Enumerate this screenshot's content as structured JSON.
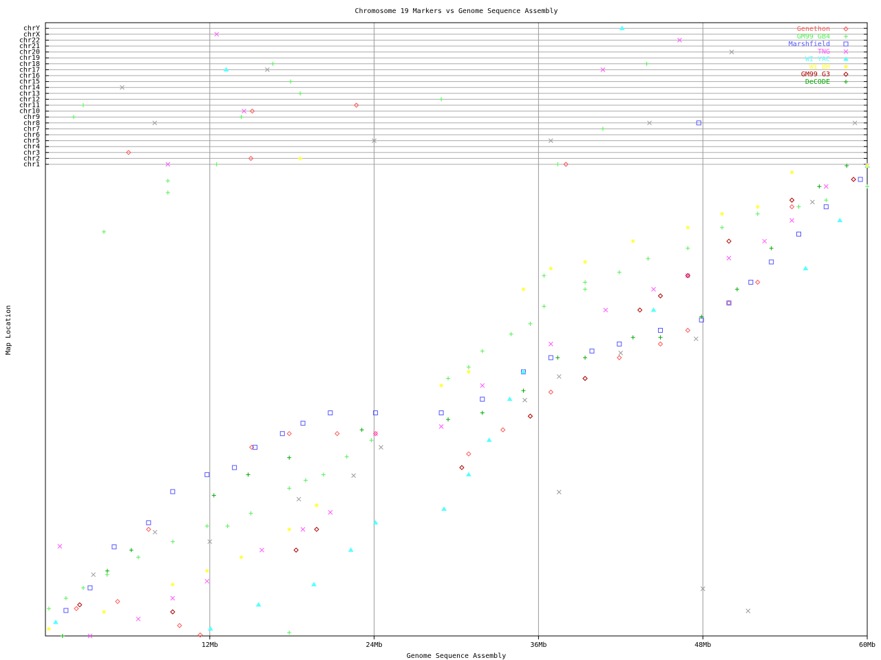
{
  "chart_data": {
    "type": "scatter",
    "title": "Chromosome 19 Markers vs Genome Sequence Assembly",
    "xlabel": "Genome Sequence Assembly",
    "ylabel": "Map Location",
    "xlim": [
      0,
      60
    ],
    "ylim": [
      0,
      100
    ],
    "x_ticks": [
      {
        "value": 12,
        "label": "12Mb"
      },
      {
        "value": 24,
        "label": "24Mb"
      },
      {
        "value": 36,
        "label": "36Mb"
      },
      {
        "value": 48,
        "label": "48Mb"
      },
      {
        "value": 60,
        "label": "60Mb"
      }
    ],
    "chromosome_rows": [
      "chr1",
      "chr2",
      "chr3",
      "chr4",
      "chr5",
      "chr6",
      "chr7",
      "chr8",
      "chr9",
      "chr10",
      "chr11",
      "chr12",
      "chr13",
      "chr14",
      "chr15",
      "chr16",
      "chr17",
      "chr18",
      "chr19",
      "chr20",
      "chr21",
      "chr22",
      "chrX",
      "chrY"
    ],
    "grid": true,
    "legend_position": "top-right",
    "series": [
      {
        "name": "Genethon",
        "marker": "diamond",
        "color": "#ff5555",
        "points": [
          [
            2.26,
            5.8
          ],
          [
            5.27,
            7.3
          ],
          [
            7.53,
            22.6
          ],
          [
            9.79,
            2.2
          ],
          [
            11.3,
            0.2
          ],
          [
            15.06,
            40
          ],
          [
            17.8,
            42.9
          ],
          [
            21.3,
            42.9
          ],
          [
            24.1,
            42.9
          ],
          [
            30.9,
            38.6
          ],
          [
            33.4,
            43.7
          ],
          [
            35.4,
            46.6
          ],
          [
            36.9,
            51.7
          ],
          [
            39.4,
            54.6
          ],
          [
            41.9,
            59
          ],
          [
            44.9,
            61.9
          ],
          [
            46.9,
            64.8
          ],
          [
            49.9,
            70.6
          ],
          [
            52,
            75
          ],
          [
            54.5,
            91
          ],
          [
            59,
            96.8
          ]
        ]
      },
      {
        "name": "GM99 GB4",
        "marker": "plus",
        "color": "#55ee55",
        "points": [
          [
            0.25,
            5.8
          ],
          [
            1.5,
            8
          ],
          [
            2.76,
            10.2
          ],
          [
            4.5,
            13
          ],
          [
            6.78,
            16.7
          ],
          [
            9.3,
            20
          ],
          [
            11.8,
            23.3
          ],
          [
            13.3,
            23.3
          ],
          [
            15,
            26
          ],
          [
            17.8,
            31.3
          ],
          [
            19,
            33
          ],
          [
            20.3,
            34.2
          ],
          [
            22,
            38
          ],
          [
            23.8,
            41.5
          ],
          [
            29.4,
            54.6
          ],
          [
            30.9,
            57
          ],
          [
            31.9,
            60.4
          ],
          [
            34,
            64
          ],
          [
            35.4,
            66.2
          ],
          [
            36.4,
            69.9
          ],
          [
            36.4,
            76.4
          ],
          [
            39.4,
            75
          ],
          [
            39.4,
            73.5
          ],
          [
            41.9,
            77.1
          ],
          [
            44,
            80
          ],
          [
            46.9,
            82.2
          ],
          [
            49.4,
            86.6
          ],
          [
            52,
            89.5
          ],
          [
            55,
            91
          ],
          [
            57,
            92.4
          ],
          [
            60,
            95.3
          ],
          [
            4.27,
            85.7
          ],
          [
            8.94,
            94
          ],
          [
            8.94,
            96.5
          ],
          [
            17.8,
            0.7
          ]
        ]
      },
      {
        "name": "Marshfield",
        "marker": "square",
        "color": "#5555ff",
        "points": [
          [
            1.5,
            5.4
          ],
          [
            3.26,
            10.2
          ],
          [
            5.02,
            18.9
          ],
          [
            7.53,
            24
          ],
          [
            9.29,
            30.6
          ],
          [
            11.8,
            34.2
          ],
          [
            13.8,
            35.7
          ],
          [
            15.3,
            40
          ],
          [
            17.3,
            42.9
          ],
          [
            18.8,
            45.1
          ],
          [
            20.8,
            47.3
          ],
          [
            24.1,
            47.3
          ],
          [
            28.9,
            47.3
          ],
          [
            31.9,
            50.2
          ],
          [
            34.9,
            56
          ],
          [
            36.9,
            59
          ],
          [
            39.9,
            60.4
          ],
          [
            41.9,
            61.9
          ],
          [
            44.9,
            64.8
          ],
          [
            47.9,
            67
          ],
          [
            49.9,
            70.6
          ],
          [
            51.5,
            75
          ],
          [
            53,
            79.3
          ],
          [
            55,
            85.2
          ],
          [
            57,
            91
          ],
          [
            59.5,
            96.8
          ]
        ]
      },
      {
        "name": "TNG",
        "marker": "x",
        "color": "#ff55ff",
        "points": [
          [
            3.26,
            0
          ],
          [
            6.78,
            3.6
          ],
          [
            9.29,
            8
          ],
          [
            11.8,
            11.6
          ],
          [
            15.8,
            18.2
          ],
          [
            18.8,
            22.6
          ],
          [
            20.8,
            26.2
          ],
          [
            24.1,
            42.9
          ],
          [
            28.9,
            44.4
          ],
          [
            31.9,
            53.1
          ],
          [
            36.9,
            61.9
          ],
          [
            40.9,
            69.1
          ],
          [
            44.4,
            73.5
          ],
          [
            46.9,
            76.4
          ],
          [
            49.9,
            80.1
          ],
          [
            52.5,
            83.7
          ],
          [
            54.5,
            88.1
          ],
          [
            57,
            95.3
          ],
          [
            60,
            99.7
          ],
          [
            1.05,
            19
          ]
        ]
      },
      {
        "name": "WI YAC",
        "marker": "triangle",
        "color": "#55ffff",
        "points": [
          [
            0.75,
            2.9
          ],
          [
            12.05,
            1.5
          ],
          [
            15.56,
            6.6
          ],
          [
            19.6,
            10.9
          ],
          [
            22.3,
            18.2
          ],
          [
            24.1,
            24
          ],
          [
            29.1,
            26.9
          ],
          [
            30.9,
            34.2
          ],
          [
            32.4,
            41.5
          ],
          [
            33.9,
            50.2
          ],
          [
            34.9,
            56
          ],
          [
            44.4,
            69.1
          ],
          [
            55.5,
            77.9
          ],
          [
            58,
            88.1
          ],
          [
            60,
            99.7
          ]
        ]
      },
      {
        "name": "WI BH",
        "marker": "asterisk",
        "color": "#ffff33",
        "points": [
          [
            0.25,
            1.5
          ],
          [
            4.27,
            5.1
          ],
          [
            9.29,
            10.9
          ],
          [
            11.8,
            13.8
          ],
          [
            14.3,
            16.7
          ],
          [
            17.8,
            22.6
          ],
          [
            19.8,
            27.7
          ],
          [
            28.9,
            53.1
          ],
          [
            30.9,
            56
          ],
          [
            34.9,
            73.5
          ],
          [
            36.9,
            77.9
          ],
          [
            39.4,
            79.3
          ],
          [
            42.9,
            83.7
          ],
          [
            46.9,
            86.6
          ],
          [
            49.4,
            89.5
          ],
          [
            52,
            91
          ],
          [
            54.5,
            98.3
          ],
          [
            60,
            99.7
          ]
        ]
      },
      {
        "name": "GM99 G3",
        "marker": "diamond",
        "color": "#aa0000",
        "points": [
          [
            2.5,
            6.6
          ],
          [
            9.29,
            5.1
          ],
          [
            18.3,
            18.2
          ],
          [
            19.8,
            22.6
          ],
          [
            30.4,
            35.7
          ],
          [
            35.4,
            46.6
          ],
          [
            39.4,
            54.6
          ],
          [
            43.4,
            69.1
          ],
          [
            44.9,
            72.1
          ],
          [
            46.9,
            76.4
          ],
          [
            49.9,
            83.7
          ],
          [
            54.5,
            92.4
          ],
          [
            59,
            96.8
          ]
        ]
      },
      {
        "name": "DeCODE",
        "marker": "plus",
        "color": "#00aa00",
        "points": [
          [
            1.25,
            0
          ],
          [
            4.52,
            13.8
          ],
          [
            6.27,
            18.2
          ],
          [
            12.3,
            29.8
          ],
          [
            14.8,
            34.2
          ],
          [
            17.8,
            37.8
          ],
          [
            23.1,
            43.7
          ],
          [
            29.4,
            45.9
          ],
          [
            31.9,
            47.3
          ],
          [
            34.9,
            52
          ],
          [
            37.4,
            59
          ],
          [
            39.4,
            59
          ],
          [
            42.9,
            63.3
          ],
          [
            44.9,
            63.3
          ],
          [
            47.9,
            67.7
          ],
          [
            50.5,
            73.5
          ],
          [
            53,
            82.2
          ],
          [
            56.5,
            95.3
          ],
          [
            58.5,
            99.7
          ]
        ]
      },
      {
        "marker": "x",
        "color": "#999999",
        "points": [
          [
            3.5,
            13
          ],
          [
            8,
            22
          ],
          [
            12,
            20
          ],
          [
            18.5,
            29
          ],
          [
            22.5,
            34
          ],
          [
            24.5,
            40
          ],
          [
            35,
            50
          ],
          [
            37.5,
            55
          ],
          [
            37.5,
            30.5
          ],
          [
            47.5,
            63
          ],
          [
            48,
            10
          ],
          [
            51.3,
            5.3
          ],
          [
            42,
            60
          ],
          [
            56,
            92
          ]
        ]
      }
    ],
    "other_chromosome_points": [
      {
        "x": 12.5,
        "chr": "chrX",
        "series": 3
      },
      {
        "x": 42.1,
        "chr": "chrY",
        "series": 4
      },
      {
        "x": 46.3,
        "chr": "chr22",
        "series": 3
      },
      {
        "x": 50.1,
        "chr": "chr20",
        "series": 8
      },
      {
        "x": 43.9,
        "chr": "chr18",
        "series": 1
      },
      {
        "x": 16.6,
        "chr": "chr18",
        "series": 1
      },
      {
        "x": 13.2,
        "chr": "chr17",
        "series": 4
      },
      {
        "x": 40.7,
        "chr": "chr17",
        "series": 3
      },
      {
        "x": 16.2,
        "chr": "chr17",
        "series": 8
      },
      {
        "x": 17.9,
        "chr": "chr15",
        "series": 1
      },
      {
        "x": 5.6,
        "chr": "chr14",
        "series": 8
      },
      {
        "x": 18.6,
        "chr": "chr13",
        "series": 1
      },
      {
        "x": 28.9,
        "chr": "chr12",
        "series": 1
      },
      {
        "x": 2.76,
        "chr": "chr11",
        "series": 1
      },
      {
        "x": 22.7,
        "chr": "chr11",
        "series": 0
      },
      {
        "x": 15.1,
        "chr": "chr10",
        "series": 0
      },
      {
        "x": 14.5,
        "chr": "chr10",
        "series": 3
      },
      {
        "x": 2.06,
        "chr": "chr9",
        "series": 1
      },
      {
        "x": 14.3,
        "chr": "chr9",
        "series": 1
      },
      {
        "x": 7.98,
        "chr": "chr8",
        "series": 8
      },
      {
        "x": 44.1,
        "chr": "chr8",
        "series": 8
      },
      {
        "x": 47.7,
        "chr": "chr8",
        "series": 2
      },
      {
        "x": 59.1,
        "chr": "chr8",
        "series": 8
      },
      {
        "x": 40.7,
        "chr": "chr7",
        "series": 1
      },
      {
        "x": 24,
        "chr": "chr5",
        "series": 8
      },
      {
        "x": 36.9,
        "chr": "chr5",
        "series": 8
      },
      {
        "x": 6.07,
        "chr": "chr3",
        "series": 0
      },
      {
        "x": 15,
        "chr": "chr2",
        "series": 0
      },
      {
        "x": 18.6,
        "chr": "chr2",
        "series": 5
      },
      {
        "x": 8.94,
        "chr": "chr1",
        "series": 3
      },
      {
        "x": 38,
        "chr": "chr1",
        "series": 0
      },
      {
        "x": 37.4,
        "chr": "chr1",
        "series": 1
      },
      {
        "x": 12.5,
        "chr": "chr1",
        "series": 1
      }
    ]
  }
}
